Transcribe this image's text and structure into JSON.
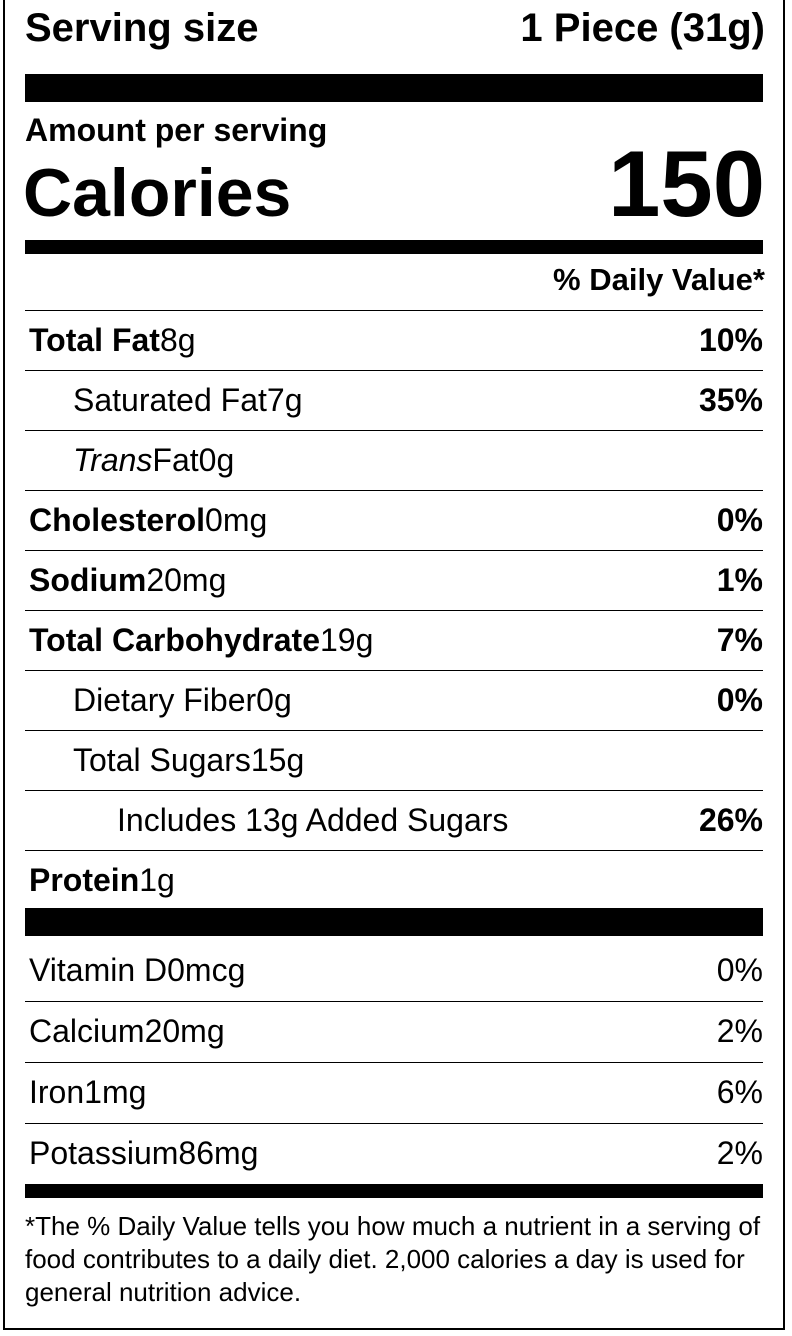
{
  "header": {
    "serving_label": "Serving size",
    "serving_value": "1 Piece (31g)",
    "amount_per_serving": "Amount per serving",
    "calories_label": "Calories",
    "calories_value": "150",
    "daily_value_heading": "% Daily Value*"
  },
  "nutrients": [
    {
      "name": "Total Fat",
      "amount": "8g",
      "dv": "10%",
      "sub": [
        {
          "name": "Saturated Fat",
          "amount": "7g",
          "dv": "35%"
        },
        {
          "italic": "Trans",
          "name": "Fat",
          "amount": "0g"
        }
      ]
    },
    {
      "name": "Cholesterol",
      "amount": "0mg",
      "dv": "0%"
    },
    {
      "name": "Sodium",
      "amount": "20mg",
      "dv": "1%"
    },
    {
      "name": "Total Carbohydrate",
      "amount": "19g",
      "dv": "7%",
      "sub": [
        {
          "name": "Dietary Fiber",
          "amount": "0g",
          "dv": "0%"
        },
        {
          "name": "Total Sugars",
          "amount": "15g",
          "sub": [
            {
              "name": "Includes 13g Added Sugars",
              "dv": "26%"
            }
          ]
        }
      ]
    },
    {
      "name": "Protein",
      "amount": "1g"
    }
  ],
  "vitamins": [
    {
      "name": "Vitamin D",
      "amount": "0mcg",
      "dv": "0%"
    },
    {
      "name": "Calcium",
      "amount": "20mg",
      "dv": "2%"
    },
    {
      "name": "Iron",
      "amount": "1mg",
      "dv": "6%"
    },
    {
      "name": "Potassium",
      "amount": "86mg",
      "dv": "2%"
    }
  ],
  "footnote": "*The % Daily Value tells you how much a nutrient in a serving of food contributes to a daily diet. 2,000 calories a day is used for general nutrition advice."
}
